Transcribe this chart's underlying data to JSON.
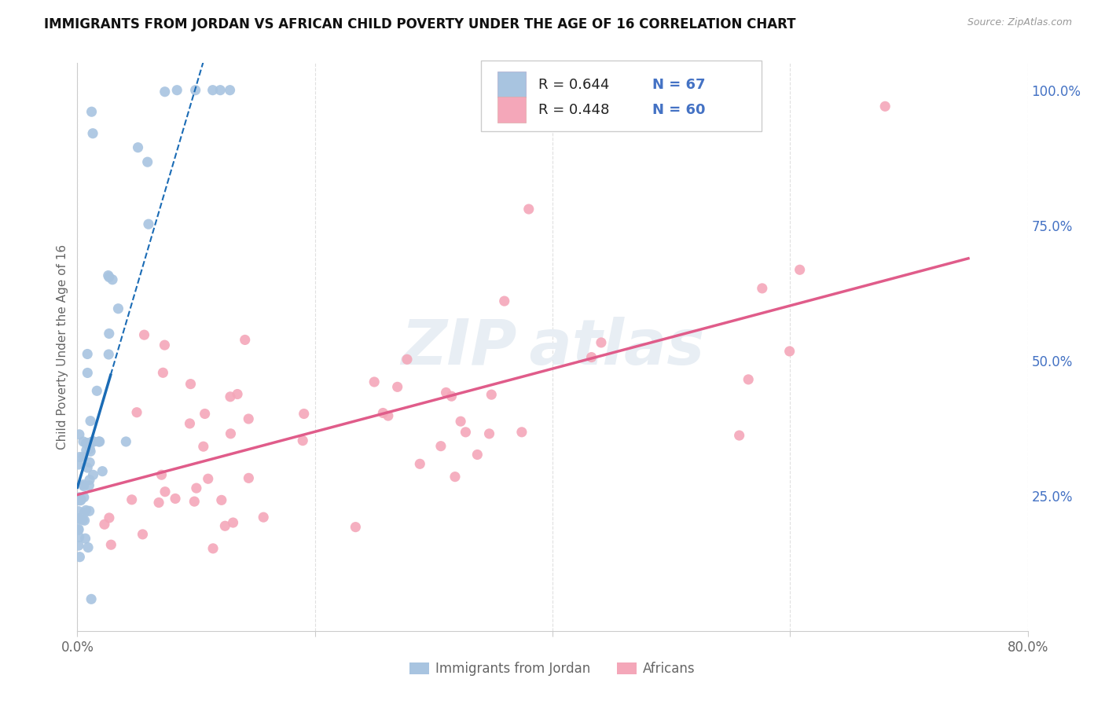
{
  "title": "IMMIGRANTS FROM JORDAN VS AFRICAN CHILD POVERTY UNDER THE AGE OF 16 CORRELATION CHART",
  "source_text": "Source: ZipAtlas.com",
  "ylabel": "Child Poverty Under the Age of 16",
  "xlim": [
    0.0,
    0.8
  ],
  "ylim": [
    0.0,
    1.05
  ],
  "xtick_vals": [
    0.0,
    0.2,
    0.4,
    0.6,
    0.8
  ],
  "xticklabels": [
    "0.0%",
    "",
    "",
    "",
    "80.0%"
  ],
  "ytick_vals": [
    0.0,
    0.25,
    0.5,
    0.75,
    1.0
  ],
  "yticklabels_right": [
    "",
    "25.0%",
    "50.0%",
    "75.0%",
    "100.0%"
  ],
  "legend_r1": "R = 0.644",
  "legend_n1": "N = 67",
  "legend_r2": "R = 0.448",
  "legend_n2": "N = 60",
  "jordan_color": "#a8c4e0",
  "african_color": "#f4a7b9",
  "jordan_line_color": "#1a6bb5",
  "african_line_color": "#e05c8a",
  "background_color": "#ffffff",
  "grid_color": "#e0e0e0",
  "tick_label_color_blue": "#4472c4",
  "tick_label_color_gray": "#666666",
  "watermark_color": "#e8eef4"
}
